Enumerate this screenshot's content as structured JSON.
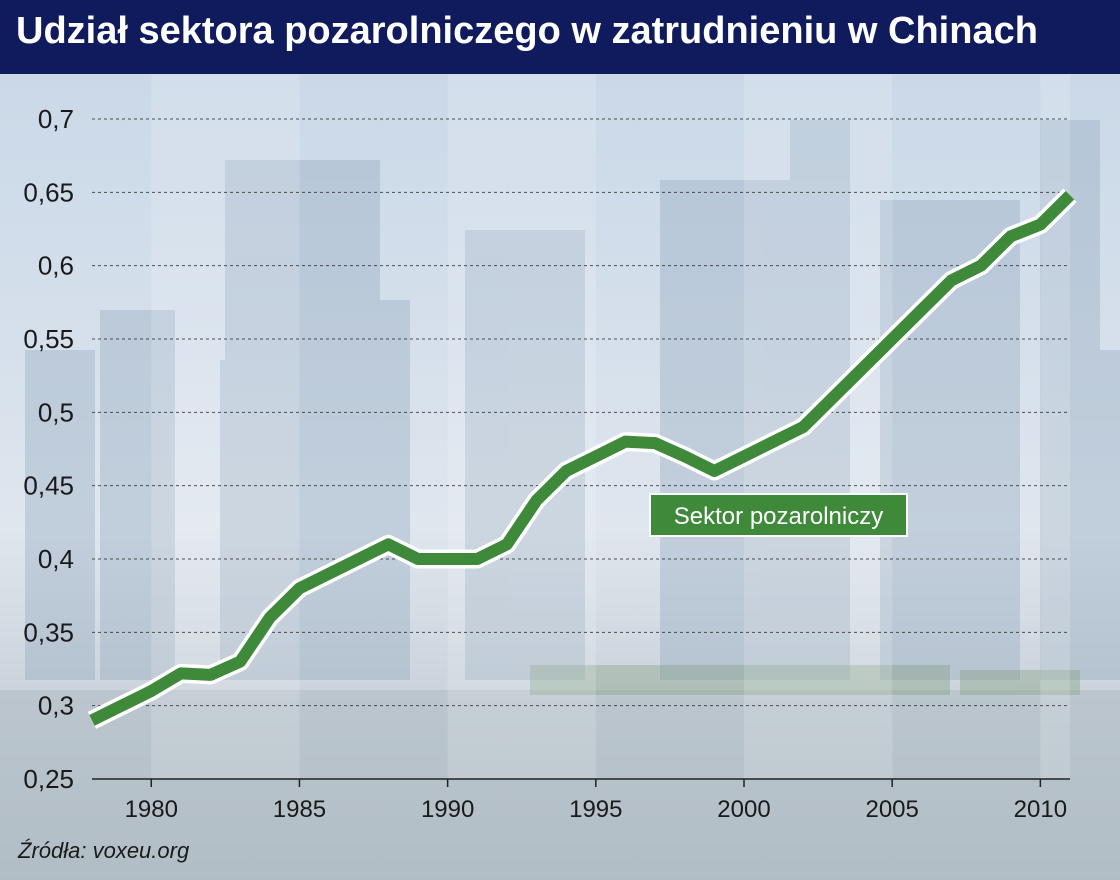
{
  "title": "Udział sektora pozarolniczego w zatrudnieniu w Chinach",
  "source": "Źródła: voxeu.org",
  "colors": {
    "header_bg": "#0f1b5c",
    "line": "#3f8a3a",
    "line_outline": "#ffffff",
    "label_bg": "#3f8a3a",
    "label_text": "#ffffff",
    "grid": "#2b2b2b"
  },
  "chart_data": {
    "type": "line",
    "title": "Udział sektora pozarolniczego w zatrudnieniu w Chinach",
    "xlabel": "",
    "ylabel": "",
    "xlim": [
      1978,
      2011
    ],
    "ylim": [
      0.25,
      0.7
    ],
    "x_ticks": [
      1980,
      1985,
      1990,
      1995,
      2000,
      2005,
      2010
    ],
    "y_ticks": [
      0.25,
      0.3,
      0.35,
      0.4,
      0.45,
      0.5,
      0.55,
      0.6,
      0.65,
      0.7
    ],
    "y_tick_labels": [
      "0,25",
      "0,3",
      "0,35",
      "0,4",
      "0,45",
      "0,5",
      "0,55",
      "0,6",
      "0,65",
      "0,7"
    ],
    "grid": "horizontal dashed",
    "series": [
      {
        "name": "Sektor pozarolniczy",
        "x": [
          1978,
          1979,
          1980,
          1981,
          1982,
          1983,
          1984,
          1985,
          1986,
          1987,
          1988,
          1989,
          1990,
          1991,
          1992,
          1993,
          1994,
          1995,
          1996,
          1997,
          1998,
          1999,
          2000,
          2001,
          2002,
          2003,
          2004,
          2005,
          2006,
          2007,
          2008,
          2009,
          2010,
          2011
        ],
        "values": [
          0.29,
          0.3,
          0.31,
          0.322,
          0.321,
          0.33,
          0.36,
          0.38,
          0.39,
          0.4,
          0.41,
          0.4,
          0.4,
          0.4,
          0.41,
          0.44,
          0.46,
          0.47,
          0.48,
          0.479,
          0.47,
          0.46,
          0.47,
          0.48,
          0.49,
          0.51,
          0.53,
          0.55,
          0.57,
          0.59,
          0.6,
          0.62,
          0.628,
          0.648
        ]
      }
    ],
    "annotations": [
      {
        "text": "Sektor pozarolniczy",
        "series": "Sektor pozarolniczy"
      }
    ]
  }
}
